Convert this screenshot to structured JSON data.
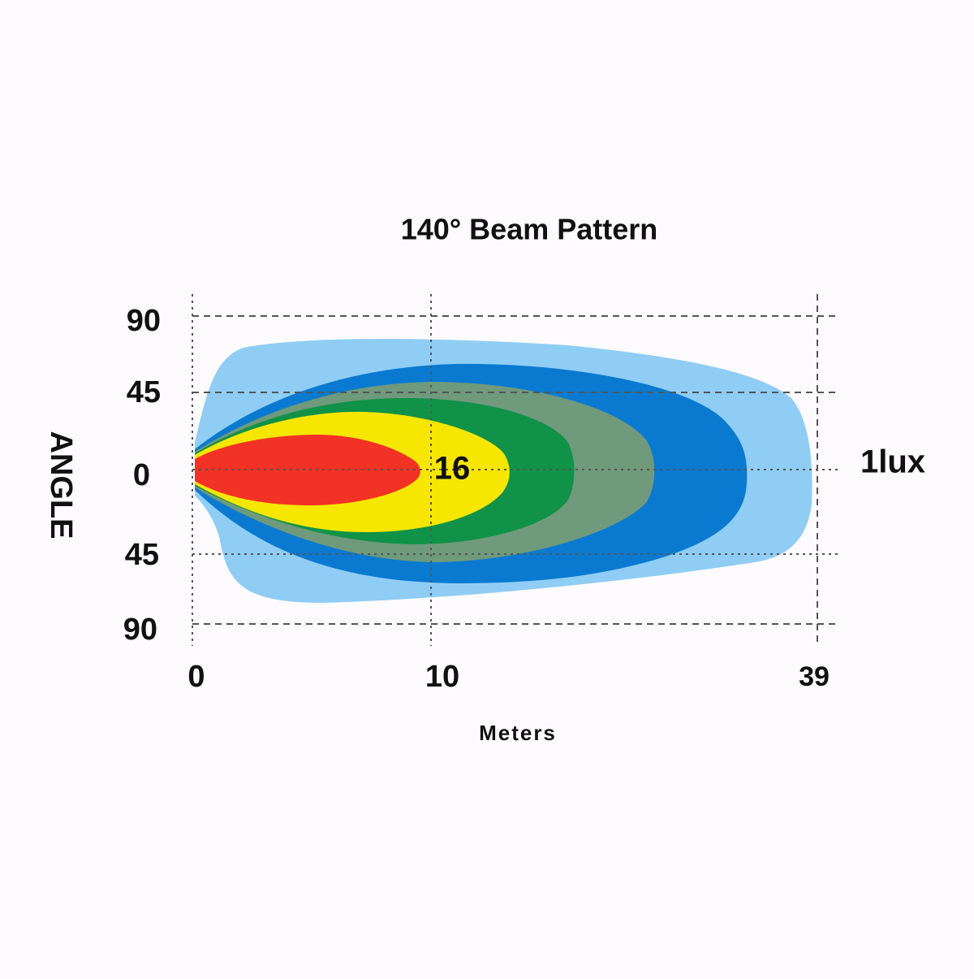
{
  "title": "140° Beam Pattern",
  "y_axis": {
    "label": "ANGLE",
    "ticks": [
      "90",
      "45",
      "0",
      "45",
      "90"
    ]
  },
  "x_axis": {
    "label": "Meters",
    "ticks": [
      "0",
      "10",
      "39"
    ]
  },
  "annotations": {
    "center": "16",
    "edge": "1lux"
  }
}
